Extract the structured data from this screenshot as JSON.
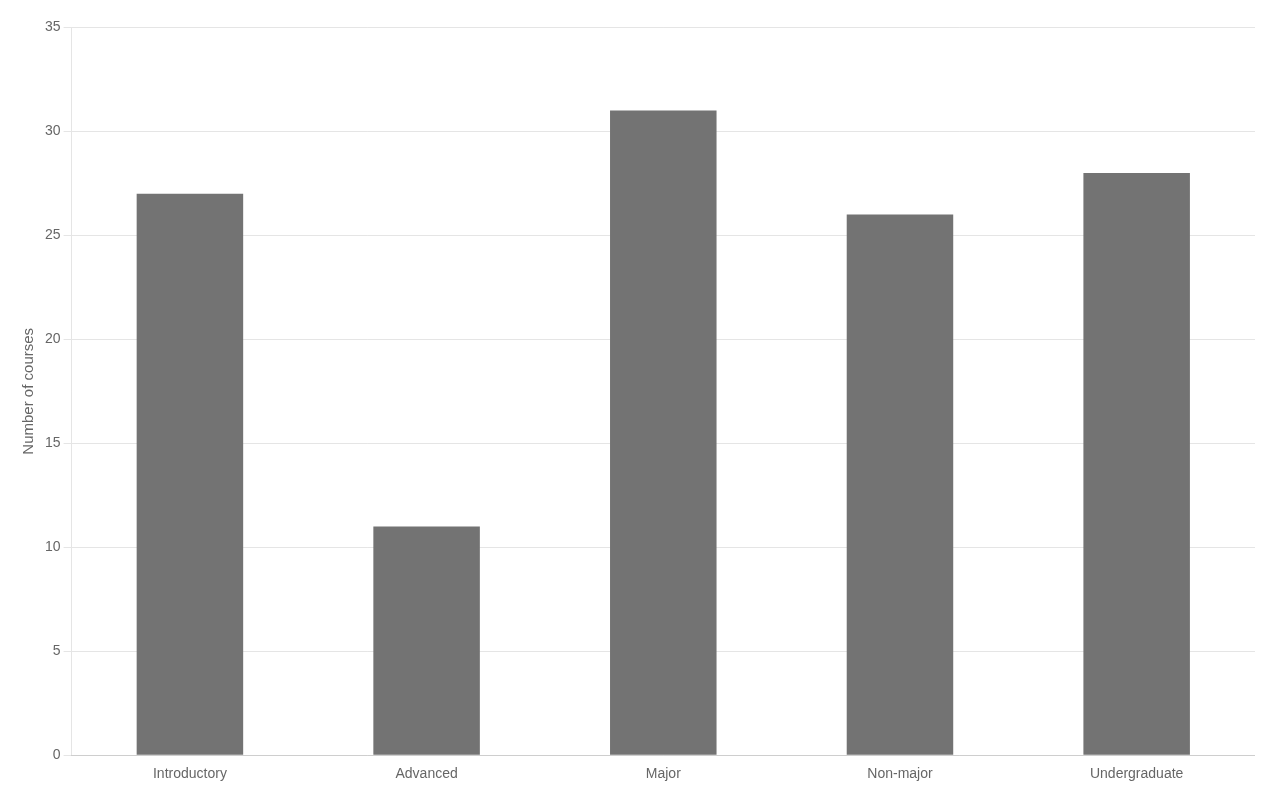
{
  "chart_data": {
    "type": "bar",
    "categories": [
      "Introductory",
      "Advanced",
      "Major",
      "Non-major",
      "Undergraduate"
    ],
    "values": [
      27,
      11,
      31,
      26,
      28
    ],
    "color": "#737373",
    "ylabel": "Number of courses",
    "ylim": [
      0,
      35
    ],
    "yticks": [
      0,
      5,
      10,
      15,
      20,
      25,
      30,
      35
    ],
    "grid": true
  }
}
